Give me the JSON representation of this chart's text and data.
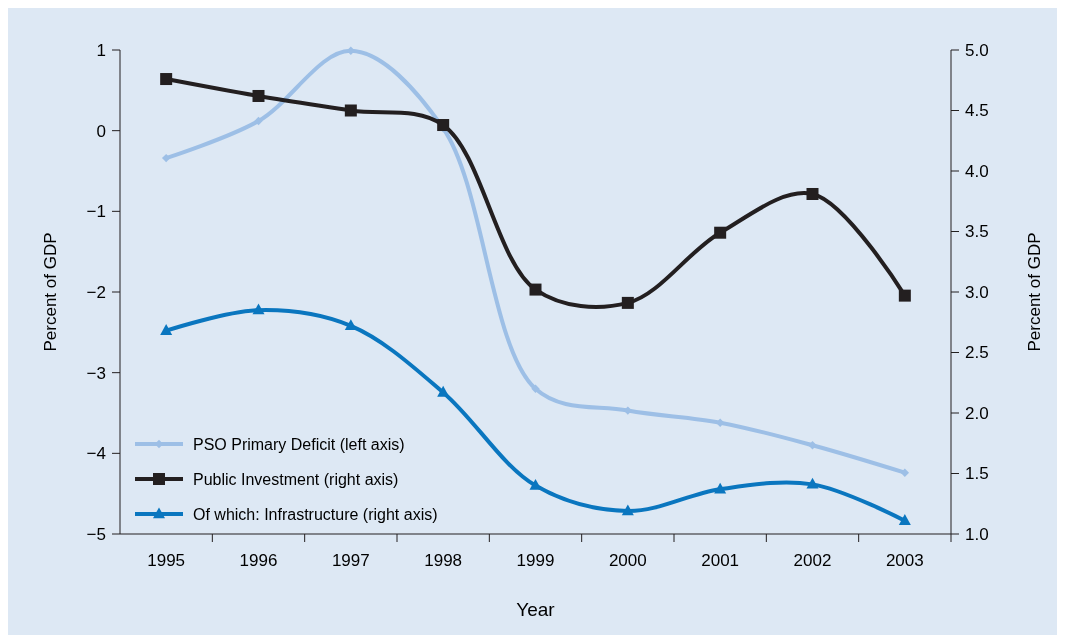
{
  "chart_data": {
    "type": "line",
    "xlabel": "Year",
    "ylabel": "Percent of GDP",
    "y2label": "Percent of GDP",
    "categories": [
      "1995",
      "1996",
      "1997",
      "1998",
      "1999",
      "2000",
      "2001",
      "2002",
      "2003"
    ],
    "series": [
      {
        "name": "PSO Primary Deficit (left axis)",
        "color": "#9dbfe6",
        "marker": "diamond",
        "values": [
          -0.34,
          0.12,
          0.99,
          0.03,
          -3.2,
          -3.47,
          -3.62,
          -3.9,
          -4.24
        ]
      },
      {
        "name": "Public Investment (right axis)",
        "color": "#231f20",
        "marker": "square",
        "axis": "y2",
        "values": [
          4.76,
          4.62,
          4.5,
          4.38,
          3.02,
          2.91,
          3.49,
          3.81,
          2.97
        ]
      },
      {
        "name": "Of which: Infrastructure (right axis)",
        "color": "#0a76bf",
        "marker": "triangle",
        "axis": "y2",
        "values": [
          2.68,
          2.85,
          2.72,
          2.17,
          1.4,
          1.19,
          1.37,
          1.41,
          1.11
        ]
      }
    ],
    "ylim": [
      -5,
      1
    ],
    "yticks": [
      {
        "value": -5,
        "label": "−5"
      },
      {
        "value": -4,
        "label": "−4"
      },
      {
        "value": -3,
        "label": "−3"
      },
      {
        "value": -2,
        "label": "−2"
      },
      {
        "value": -1,
        "label": "−1"
      },
      0,
      1
    ],
    "y2lim": [
      1,
      5
    ],
    "y2ticks": [
      {
        "value": 1,
        "label": "1.0"
      },
      {
        "value": 1.5,
        "label": "1.5"
      },
      {
        "value": 2,
        "label": "2.0"
      },
      {
        "value": 2.5,
        "label": "2.5"
      },
      {
        "value": 3,
        "label": "3.0"
      },
      {
        "value": 3.5,
        "label": "3.5"
      },
      {
        "value": 4,
        "label": "4.0"
      },
      {
        "value": 4.5,
        "label": "4.5"
      },
      {
        "value": 5,
        "label": "5.0"
      }
    ],
    "grid": false,
    "legend": "bottom left",
    "line_style": "solid"
  }
}
